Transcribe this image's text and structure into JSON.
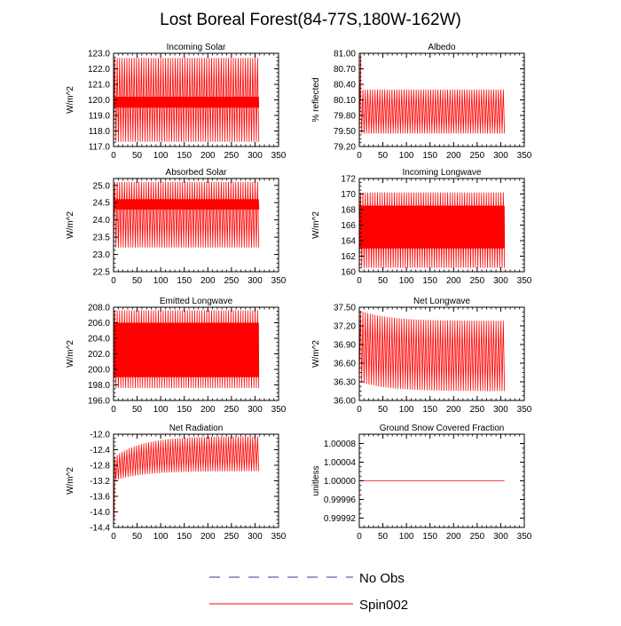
{
  "figure": {
    "title": "Lost Boreal Forest(84-77S,180W-162W)"
  },
  "legend": {
    "entries": [
      {
        "label": "No Obs",
        "color": "#3a3aa0",
        "style": "dashed"
      },
      {
        "label": "Spin002",
        "color": "#ff0000",
        "style": "solid"
      }
    ]
  },
  "chart_data": [
    {
      "type": "line",
      "title": "Incoming Solar",
      "ylabel": "W/m^2",
      "xlim": [
        0,
        350
      ],
      "ylim": [
        117.0,
        123.0
      ],
      "xticks": [
        0,
        50,
        100,
        150,
        200,
        250,
        300,
        350
      ],
      "xtick_labels": [
        "0",
        "50",
        "100",
        "150",
        "200",
        "250",
        "300",
        "350"
      ],
      "yticks": [
        117.0,
        118.0,
        119.0,
        120.0,
        121.0,
        122.0,
        123.0
      ],
      "ytick_labels": [
        "117.0",
        "118.0",
        "119.0",
        "120.0",
        "121.0",
        "122.0",
        "123.0"
      ],
      "series": [
        {
          "color": "#ff0000",
          "x_end": 308,
          "periods": 60,
          "envelope_high": [
            122.7,
            122.7
          ],
          "envelope_low": [
            117.3,
            117.3
          ],
          "band": [
            119.5,
            120.2
          ]
        }
      ]
    },
    {
      "type": "line",
      "title": "Albedo",
      "ylabel": "% reflected",
      "xlim": [
        0,
        350
      ],
      "ylim": [
        79.2,
        81.0
      ],
      "xticks": [
        0,
        50,
        100,
        150,
        200,
        250,
        300,
        350
      ],
      "xtick_labels": [
        "0",
        "50",
        "100",
        "150",
        "200",
        "250",
        "300",
        "350"
      ],
      "yticks": [
        79.2,
        79.5,
        79.8,
        80.1,
        80.4,
        80.7,
        81.0
      ],
      "ytick_labels": [
        "79.20",
        "79.50",
        "79.80",
        "80.10",
        "80.40",
        "80.70",
        "81.00"
      ],
      "series": [
        {
          "color": "#ff0000",
          "x_end": 308,
          "periods": 60,
          "envelope_high": [
            80.3,
            80.3
          ],
          "envelope_low": [
            79.45,
            79.45
          ],
          "spike": {
            "x": 3,
            "y": 81.0
          }
        }
      ]
    },
    {
      "type": "line",
      "title": "Absorbed Solar",
      "ylabel": "W/m^2",
      "xlim": [
        0,
        350
      ],
      "ylim": [
        22.5,
        25.2
      ],
      "xticks": [
        0,
        50,
        100,
        150,
        200,
        250,
        300,
        350
      ],
      "xtick_labels": [
        "0",
        "50",
        "100",
        "150",
        "200",
        "250",
        "300",
        "350"
      ],
      "yticks": [
        22.5,
        23.0,
        23.5,
        24.0,
        24.5,
        25.0
      ],
      "ytick_labels": [
        "22.5",
        "23.0",
        "23.5",
        "24.0",
        "24.5",
        "25.0"
      ],
      "series": [
        {
          "color": "#ff0000",
          "x_end": 308,
          "periods": 60,
          "envelope_high": [
            25.1,
            25.1
          ],
          "envelope_low": [
            23.2,
            23.2
          ],
          "band": [
            24.3,
            24.6
          ]
        }
      ]
    },
    {
      "type": "line",
      "title": "Incoming Longwave",
      "ylabel": "W/m^2",
      "xlim": [
        0,
        350
      ],
      "ylim": [
        160,
        172
      ],
      "xticks": [
        0,
        50,
        100,
        150,
        200,
        250,
        300,
        350
      ],
      "xtick_labels": [
        "0",
        "50",
        "100",
        "150",
        "200",
        "250",
        "300",
        "350"
      ],
      "yticks": [
        160,
        162,
        164,
        166,
        168,
        170,
        172
      ],
      "ytick_labels": [
        "160",
        "162",
        "164",
        "166",
        "168",
        "170",
        "172"
      ],
      "series": [
        {
          "color": "#ff0000",
          "x_end": 308,
          "periods": 60,
          "envelope_high": [
            170.2,
            170.2
          ],
          "envelope_low": [
            160.5,
            160.5
          ],
          "band": [
            163.0,
            168.5
          ]
        }
      ]
    },
    {
      "type": "line",
      "title": "Emitted Longwave",
      "ylabel": "W/m^2",
      "xlim": [
        0,
        350
      ],
      "ylim": [
        196.0,
        208.0
      ],
      "xticks": [
        0,
        50,
        100,
        150,
        200,
        250,
        300,
        350
      ],
      "xtick_labels": [
        "0",
        "50",
        "100",
        "150",
        "200",
        "250",
        "300",
        "350"
      ],
      "yticks": [
        196.0,
        198.0,
        200.0,
        202.0,
        204.0,
        206.0,
        208.0
      ],
      "ytick_labels": [
        "196.0",
        "198.0",
        "200.0",
        "202.0",
        "204.0",
        "206.0",
        "208.0"
      ],
      "series": [
        {
          "color": "#ff0000",
          "x_end": 308,
          "periods": 60,
          "envelope_high": [
            207.6,
            207.6
          ],
          "envelope_low": [
            197.6,
            197.6
          ],
          "band": [
            199.0,
            206.0
          ]
        }
      ]
    },
    {
      "type": "line",
      "title": "Net Longwave",
      "ylabel": "W/m^2",
      "xlim": [
        0,
        350
      ],
      "ylim": [
        36.0,
        37.5
      ],
      "xticks": [
        0,
        50,
        100,
        150,
        200,
        250,
        300,
        350
      ],
      "xtick_labels": [
        "0",
        "50",
        "100",
        "150",
        "200",
        "250",
        "300",
        "350"
      ],
      "yticks": [
        36.0,
        36.3,
        36.6,
        36.9,
        37.2,
        37.5
      ],
      "ytick_labels": [
        "36.00",
        "36.30",
        "36.60",
        "36.90",
        "37.20",
        "37.50"
      ],
      "series": [
        {
          "color": "#ff0000",
          "x_end": 308,
          "periods": 60,
          "envelope_high": [
            37.45,
            37.28
          ],
          "envelope_low": [
            36.3,
            36.15
          ],
          "decay": true
        }
      ]
    },
    {
      "type": "line",
      "title": "Net Radiation",
      "ylabel": "W/m^2",
      "xlim": [
        0,
        350
      ],
      "ylim": [
        -14.4,
        -12.0
      ],
      "xticks": [
        0,
        50,
        100,
        150,
        200,
        250,
        300,
        350
      ],
      "xtick_labels": [
        "0",
        "50",
        "100",
        "150",
        "200",
        "250",
        "300",
        "350"
      ],
      "yticks": [
        -14.4,
        -14.0,
        -13.6,
        -13.2,
        -12.8,
        -12.4,
        -12.0
      ],
      "ytick_labels": [
        "-14.4",
        "-14.0",
        "-13.6",
        "-13.2",
        "-12.8",
        "-12.4",
        "-12.0"
      ],
      "series": [
        {
          "color": "#ff0000",
          "x_end": 308,
          "periods": 60,
          "envelope_high": [
            -12.6,
            -12.05
          ],
          "envelope_low": [
            -13.2,
            -12.95
          ],
          "decay": true,
          "spike": {
            "x": 1,
            "y": -14.2
          }
        }
      ]
    },
    {
      "type": "line",
      "title": "Ground Snow Covered Fraction",
      "ylabel": "unitless",
      "xlim": [
        0,
        350
      ],
      "ylim": [
        0.9999,
        1.0001
      ],
      "xticks": [
        0,
        50,
        100,
        150,
        200,
        250,
        300,
        350
      ],
      "xtick_labels": [
        "0",
        "50",
        "100",
        "150",
        "200",
        "250",
        "300",
        "350"
      ],
      "yticks": [
        0.99992,
        0.99996,
        1.0,
        1.00004,
        1.00008
      ],
      "ytick_labels": [
        "0.99992",
        "0.99996",
        "1.00000",
        "1.00004",
        "1.00008"
      ],
      "series": [
        {
          "color": "#ff0000",
          "x_end": 308,
          "constant": 1.0
        }
      ]
    }
  ]
}
